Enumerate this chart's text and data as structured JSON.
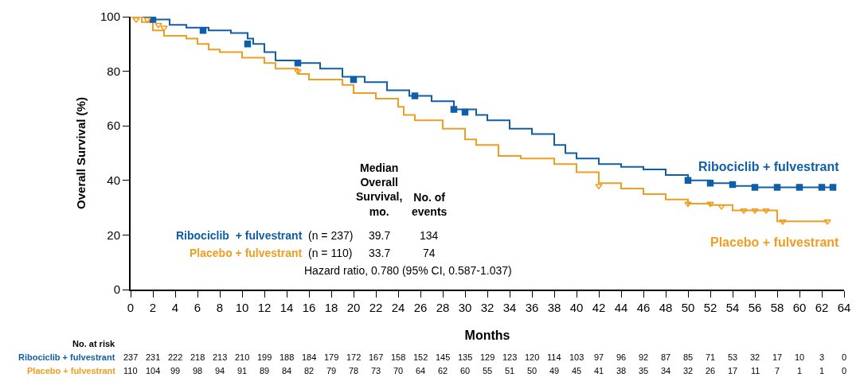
{
  "chart_data": {
    "type": "step",
    "xlabel": "Months",
    "ylabel": "Overall Survival (%)",
    "xlim": [
      0,
      64
    ],
    "xticks": [
      0,
      2,
      4,
      6,
      8,
      10,
      12,
      14,
      16,
      18,
      20,
      22,
      24,
      26,
      28,
      30,
      32,
      34,
      36,
      38,
      40,
      42,
      44,
      46,
      48,
      50,
      52,
      54,
      56,
      58,
      60,
      62,
      64
    ],
    "ylim": [
      0,
      100
    ],
    "yticks": [
      0,
      20,
      40,
      60,
      80,
      100
    ],
    "series": [
      {
        "name": "Ribociclib + fulvestrant",
        "color": "#0f5fa8",
        "x": [
          0,
          2,
          3.5,
          5,
          7,
          9,
          10.5,
          11,
          12,
          13,
          15,
          17,
          19,
          21,
          23,
          25,
          27,
          29,
          31,
          32,
          34,
          36,
          38,
          39,
          40,
          42,
          44,
          46,
          48,
          50,
          52,
          54,
          56,
          58,
          63
        ],
        "values": [
          100,
          99,
          97,
          96,
          95,
          94,
          92,
          90,
          87,
          84,
          83,
          81,
          78,
          76,
          73,
          71,
          69,
          66,
          64,
          62,
          59,
          57,
          53,
          50,
          48,
          46,
          45,
          44,
          42,
          40,
          39,
          38,
          37.5,
          37.5,
          37.5
        ]
      },
      {
        "name": "Placebo + fulvestrant",
        "color": "#f09d20",
        "x": [
          0,
          1,
          2,
          3,
          5,
          6,
          7,
          8,
          10,
          12,
          13,
          15,
          16,
          19,
          20,
          22,
          24,
          24.5,
          25.5,
          28,
          30,
          31,
          33,
          35,
          38,
          40,
          42,
          44,
          46,
          48,
          50,
          52,
          54,
          56,
          58,
          62.5
        ],
        "values": [
          100,
          98,
          95,
          93,
          92,
          90,
          88,
          87,
          85,
          83,
          81,
          79,
          77,
          75,
          72,
          70,
          67,
          64,
          62,
          59,
          55,
          53,
          49,
          48,
          46,
          43,
          39,
          37,
          35,
          33,
          31.5,
          31,
          29,
          29,
          25,
          25
        ]
      },
      {
        "type": "scatter",
        "marker": "square",
        "color": "#0f5fa8",
        "x": [
          2,
          6.5,
          10.5,
          15,
          20,
          25.5,
          29,
          30,
          50,
          52,
          54,
          56,
          58,
          60,
          62,
          63
        ],
        "values": [
          99,
          95,
          90,
          83,
          77,
          71,
          66,
          65,
          40,
          39,
          38.5,
          37.5,
          37.5,
          37.5,
          37.5,
          37.5
        ]
      },
      {
        "type": "scatter",
        "marker": "triangle",
        "color": "#f09d20",
        "x": [
          0.5,
          1.5,
          2.5,
          3,
          15,
          42,
          50,
          52,
          53,
          55,
          56,
          57,
          58.5,
          62.5
        ],
        "values": [
          99,
          99,
          97,
          96,
          80,
          38,
          31.5,
          31.5,
          30.5,
          29,
          29,
          29,
          25,
          25
        ]
      }
    ],
    "annotations": [
      "Median\nOverall\nSurvival,\nmo.",
      "No. of\nevents",
      "Ribociclib  + fulvestrant",
      "(n = 237)",
      "39.7",
      "134",
      "Placebo + fulvestrant",
      "(n = 110)",
      "33.7",
      "74",
      "Hazard ratio, 0.780 (95% CI, 0.587-1.037)",
      "No. at risk",
      "Ribociclib + fulvestrant",
      "237 231 222 218 213 210 199 188 184 179 172 167 158 152 145 135 129 123 120 114 103 97 96 92 87 85 71 53 32 17 10 3 0",
      "Placebo + fulvestrant",
      "110 104 99 98 94 91 89 84 82 79 78 73 70 64 62 60 55 51 50 49 45 41 38 35 34 32 26 17 11 7 1 1 0"
    ]
  }
}
